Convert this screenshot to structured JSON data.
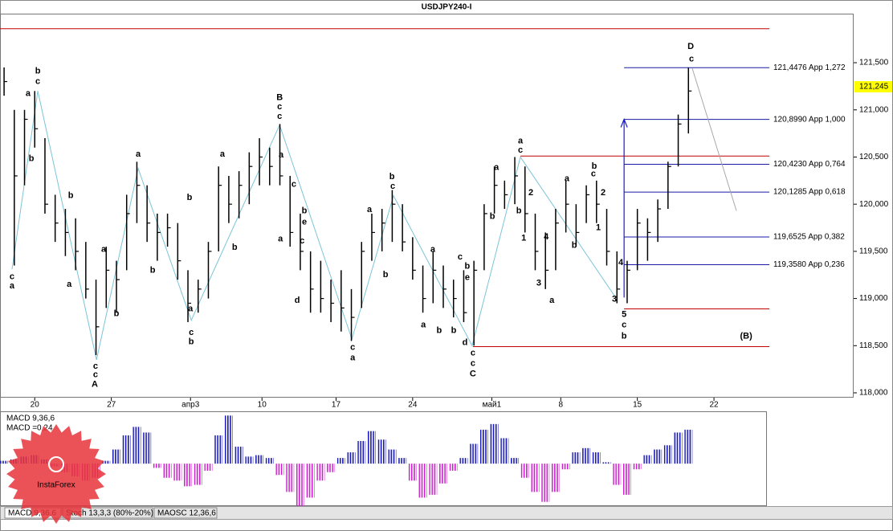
{
  "chart_data": [
    {
      "type": "ohlc",
      "title": "USDJPY240-I",
      "color": "#000000",
      "x": [
        0,
        4,
        8,
        12,
        16,
        20,
        24,
        28,
        32,
        36,
        40,
        44,
        48,
        52,
        56,
        60,
        64,
        68,
        72,
        76,
        80,
        84,
        88,
        92,
        96,
        100,
        104,
        108,
        112,
        116,
        120,
        124,
        128,
        132,
        136,
        140,
        144,
        148,
        152,
        156,
        160,
        164,
        168,
        172,
        176,
        180,
        184,
        188,
        192,
        196,
        200,
        204,
        208,
        212,
        216,
        220,
        224,
        228,
        232,
        236,
        240,
        244,
        248,
        252,
        256,
        260,
        264,
        268
      ],
      "high": [
        121.45,
        121.0,
        121.0,
        121.2,
        120.7,
        120.1,
        119.95,
        119.85,
        119.6,
        119.2,
        119.55,
        119.4,
        120.1,
        120.45,
        120.2,
        119.9,
        119.9,
        119.8,
        119.3,
        119.2,
        119.6,
        120.4,
        120.3,
        120.35,
        120.55,
        120.7,
        120.6,
        120.85,
        120.3,
        119.9,
        119.5,
        119.4,
        119.2,
        119.3,
        119.1,
        119.6,
        119.9,
        119.95,
        120.15,
        120.0,
        119.65,
        119.35,
        119.5,
        119.35,
        119.2,
        119.3,
        119.4,
        120.0,
        120.4,
        120.25,
        120.5,
        120.4,
        119.9,
        119.7,
        119.95,
        120.25,
        120.0,
        120.2,
        120.25,
        119.95,
        119.5,
        119.4,
        119.95,
        119.85,
        120.05,
        120.45,
        120.95,
        121.45
      ],
      "low": [
        121.15,
        119.35,
        120.2,
        120.6,
        119.9,
        119.6,
        119.45,
        119.3,
        119.0,
        118.4,
        118.9,
        118.85,
        119.3,
        119.8,
        119.6,
        119.4,
        119.55,
        119.2,
        118.75,
        118.85,
        119.0,
        119.5,
        119.8,
        119.85,
        120.0,
        120.2,
        120.2,
        120.2,
        119.55,
        119.3,
        118.85,
        118.85,
        118.75,
        118.65,
        118.55,
        118.9,
        119.4,
        119.5,
        119.6,
        119.5,
        119.2,
        118.85,
        118.95,
        118.9,
        118.8,
        118.75,
        118.5,
        119.3,
        119.9,
        119.95,
        120.0,
        119.7,
        119.3,
        119.1,
        119.3,
        119.7,
        119.55,
        119.8,
        119.8,
        119.35,
        118.95,
        118.95,
        119.3,
        119.4,
        119.6,
        119.95,
        120.4,
        120.75
      ],
      "close": [
        121.3,
        120.3,
        120.9,
        120.8,
        120.0,
        119.8,
        119.7,
        119.5,
        119.1,
        118.7,
        119.3,
        119.2,
        119.9,
        120.2,
        119.8,
        119.7,
        119.75,
        119.4,
        118.95,
        119.1,
        119.5,
        120.2,
        120.0,
        120.2,
        120.4,
        120.5,
        120.4,
        120.3,
        119.7,
        119.5,
        119.1,
        119.0,
        118.95,
        118.9,
        118.8,
        119.5,
        119.7,
        119.8,
        120.0,
        119.6,
        119.3,
        119.0,
        119.3,
        119.1,
        119.0,
        118.85,
        119.3,
        119.9,
        120.2,
        120.1,
        120.3,
        119.9,
        119.5,
        119.3,
        119.8,
        120.0,
        119.7,
        120.1,
        120.0,
        119.5,
        119.1,
        119.3,
        119.8,
        119.7,
        119.95,
        120.4,
        120.85,
        121.2
      ],
      "xlim": [
        -1.6,
        332.7
      ],
      "xticks": [
        {
          "value": 12,
          "label": "20"
        },
        {
          "value": 42,
          "label": "27"
        },
        {
          "value": 73,
          "label": "апр3"
        },
        {
          "value": 101,
          "label": "10"
        },
        {
          "value": 130,
          "label": "17"
        },
        {
          "value": 160,
          "label": "24"
        },
        {
          "value": 191,
          "label": "май1"
        },
        {
          "value": 218,
          "label": "8"
        },
        {
          "value": 248,
          "label": "15"
        },
        {
          "value": 278,
          "label": "22"
        }
      ],
      "ylim": [
        117.949,
        122.02
      ],
      "yticks": [
        {
          "value": 118,
          "label": "118,000"
        },
        {
          "value": 118.5,
          "label": "118,500"
        },
        {
          "value": 119,
          "label": "119,000"
        },
        {
          "value": 119.5,
          "label": "119,500"
        },
        {
          "value": 120,
          "label": "120,000"
        },
        {
          "value": 120.5,
          "label": "120,500"
        },
        {
          "value": 121,
          "label": "121,000"
        },
        {
          "value": 121.5,
          "label": "121,500"
        }
      ],
      "last_price": {
        "value": 121.245,
        "label": "121,245"
      },
      "fib_levels": {
        "color": "#1a1aa8",
        "x": [
          242.8,
          299.7
        ],
        "levels": [
          {
            "value": 121.4476,
            "label": "121,4476 App 1,272"
          },
          {
            "value": 120.899,
            "label": "120,8990 App 1,000"
          },
          {
            "value": 120.423,
            "label": "120,4230 App 0,764"
          },
          {
            "value": 120.1285,
            "label": "120,1285 App 0,618"
          },
          {
            "value": 119.6525,
            "label": "119,6525 App 0,382"
          },
          {
            "value": 119.358,
            "label": "119,3580 App 0,236"
          }
        ]
      },
      "lines": {
        "color": "#c00000",
        "items": [
          {
            "value": 121.86,
            "x": [
              -1.6,
              299.7
            ]
          },
          {
            "value": 120.51,
            "x": [
              202.2,
              299.7
            ]
          },
          {
            "value": 118.89,
            "x": [
              242.8,
              299.7
            ]
          },
          {
            "value": 118.49,
            "x": [
              183.6,
              299.7
            ]
          }
        ]
      },
      "wave_path": {
        "color": "#7cc4d8",
        "x": [
          3.1,
          13.2,
          36.2,
          52.5,
          73.3,
          107.9,
          136.2,
          152.5,
          183.3,
          202.2,
          239
        ],
        "y": [
          119.31,
          121.2,
          118.35,
          120.38,
          118.77,
          120.84,
          118.57,
          120.09,
          118.5,
          120.5,
          119.03
        ]
      },
      "projection": {
        "color": "#a8a8a8",
        "x": [
          269.5,
          286.8
        ],
        "y": [
          121.44,
          119.93
        ]
      },
      "arrow": {
        "color": "#1a1acc",
        "x": 242.8,
        "y": [
          119.01,
          120.9
        ]
      },
      "annotations": {
        "major": {
          "color": "#1a1acc",
          "items": [
            {
              "text": "A",
              "x": 35.5,
              "y": 118.09
            },
            {
              "text": "B",
              "x": 107.9,
              "y": 121.13
            },
            {
              "text": "C",
              "x": 183.6,
              "y": 118.2
            },
            {
              "text": "D",
              "x": 268.9,
              "y": 121.67
            }
          ]
        },
        "degree": {
          "color": "#8b1a1a",
          "items": [
            {
              "text": "(B)",
              "x": 290.6,
              "y": 118.6
            }
          ]
        },
        "minor_blue": {
          "color": "#1a1acc",
          "items": [
            {
              "text": "a",
              "x": 3.1,
              "y": 119.13
            },
            {
              "text": "b",
              "x": 13.2,
              "y": 121.41
            },
            {
              "text": "c",
              "x": 35.8,
              "y": 118.19
            },
            {
              "text": "c",
              "x": 107.9,
              "y": 121.03
            },
            {
              "text": "b",
              "x": 73.3,
              "y": 118.54
            },
            {
              "text": "a",
              "x": 52.5,
              "y": 120.53
            },
            {
              "text": "a",
              "x": 136.5,
              "y": 118.37
            },
            {
              "text": "b",
              "x": 151.9,
              "y": 120.29
            },
            {
              "text": "c",
              "x": 183.6,
              "y": 118.31
            },
            {
              "text": "a",
              "x": 202.2,
              "y": 120.67
            },
            {
              "text": "c",
              "x": 269.2,
              "y": 121.54
            },
            {
              "text": "b",
              "x": 242.8,
              "y": 118.6
            }
          ]
        },
        "minor_black": {
          "color": "#000000",
          "items": [
            {
              "text": "c",
              "x": 3.1,
              "y": 119.23
            },
            {
              "text": "c",
              "x": 13.2,
              "y": 121.3
            },
            {
              "text": "a",
              "x": 9.4,
              "y": 121.17
            },
            {
              "text": "b",
              "x": 10.7,
              "y": 120.48
            },
            {
              "text": "b",
              "x": 26.1,
              "y": 120.09
            },
            {
              "text": "a",
              "x": 25.5,
              "y": 119.15
            },
            {
              "text": "a",
              "x": 39,
              "y": 119.52
            },
            {
              "text": "b",
              "x": 44,
              "y": 118.84
            },
            {
              "text": "c",
              "x": 35.8,
              "y": 118.28
            },
            {
              "text": "c",
              "x": 73.3,
              "y": 118.64
            },
            {
              "text": "a",
              "x": 73,
              "y": 118.89
            },
            {
              "text": "b",
              "x": 72.6,
              "y": 120.07
            },
            {
              "text": "b",
              "x": 58.2,
              "y": 119.3
            },
            {
              "text": "a",
              "x": 85.5,
              "y": 120.53
            },
            {
              "text": "b",
              "x": 90.3,
              "y": 119.54
            },
            {
              "text": "c",
              "x": 107.9,
              "y": 120.93
            },
            {
              "text": "a",
              "x": 108.5,
              "y": 120.52
            },
            {
              "text": "c",
              "x": 113.5,
              "y": 120.21
            },
            {
              "text": "b",
              "x": 117.6,
              "y": 119.93
            },
            {
              "text": "e",
              "x": 117.6,
              "y": 119.81
            },
            {
              "text": "a",
              "x": 108.2,
              "y": 119.63
            },
            {
              "text": "c",
              "x": 116.7,
              "y": 119.61
            },
            {
              "text": "d",
              "x": 114.8,
              "y": 118.98
            },
            {
              "text": "c",
              "x": 136.5,
              "y": 118.48
            },
            {
              "text": "a",
              "x": 143.1,
              "y": 119.94
            },
            {
              "text": "b",
              "x": 149.4,
              "y": 119.25
            },
            {
              "text": "c",
              "x": 152.2,
              "y": 120.19
            },
            {
              "text": "a",
              "x": 167.9,
              "y": 119.52
            },
            {
              "text": "a",
              "x": 164.2,
              "y": 118.72
            },
            {
              "text": "b",
              "x": 170.4,
              "y": 118.66
            },
            {
              "text": "b",
              "x": 176.1,
              "y": 118.66
            },
            {
              "text": "c",
              "x": 178.6,
              "y": 119.44
            },
            {
              "text": "b",
              "x": 181.4,
              "y": 119.34
            },
            {
              "text": "e",
              "x": 181.4,
              "y": 119.22
            },
            {
              "text": "d",
              "x": 180.5,
              "y": 118.53
            },
            {
              "text": "c",
              "x": 183.6,
              "y": 118.42
            },
            {
              "text": "a",
              "x": 192.8,
              "y": 120.39
            },
            {
              "text": "b",
              "x": 191.2,
              "y": 119.87
            },
            {
              "text": "c",
              "x": 202.2,
              "y": 120.57
            },
            {
              "text": "b",
              "x": 201.6,
              "y": 119.93
            },
            {
              "text": "1",
              "x": 203.5,
              "y": 119.64
            },
            {
              "text": "2",
              "x": 206.3,
              "y": 120.12
            },
            {
              "text": "4",
              "x": 212.3,
              "y": 119.65
            },
            {
              "text": "3",
              "x": 209.4,
              "y": 119.16
            },
            {
              "text": "a",
              "x": 214.5,
              "y": 118.98
            },
            {
              "text": "a",
              "x": 220.4,
              "y": 120.27
            },
            {
              "text": "b",
              "x": 223.3,
              "y": 119.56
            },
            {
              "text": "b",
              "x": 231.1,
              "y": 120.4
            },
            {
              "text": "c",
              "x": 230.8,
              "y": 120.32
            },
            {
              "text": "2",
              "x": 234.6,
              "y": 120.12
            },
            {
              "text": "1",
              "x": 232.7,
              "y": 119.75
            },
            {
              "text": "3",
              "x": 239,
              "y": 118.99
            },
            {
              "text": "4",
              "x": 241.5,
              "y": 119.38
            },
            {
              "text": "5",
              "x": 242.8,
              "y": 118.83
            },
            {
              "text": "c",
              "x": 242.8,
              "y": 118.72
            }
          ]
        }
      }
    },
    {
      "type": "bar",
      "title": "MACD 9,36,6",
      "label": "MACD =0,24",
      "colors": {
        "positive": "#1818b4",
        "negative": "#cc22cc"
      },
      "x": [
        0,
        4,
        8,
        12,
        16,
        20,
        24,
        28,
        32,
        36,
        40,
        44,
        48,
        52,
        56,
        60,
        64,
        68,
        72,
        76,
        80,
        84,
        88,
        92,
        96,
        100,
        104,
        108,
        112,
        116,
        120,
        124,
        128,
        132,
        136,
        140,
        144,
        148,
        152,
        156,
        160,
        164,
        168,
        172,
        176,
        180,
        184,
        188,
        192,
        196,
        200,
        204,
        208,
        212,
        216,
        220,
        224,
        228,
        232,
        236,
        240,
        244,
        248,
        252,
        256,
        260,
        264,
        268
      ],
      "values": [
        0.02,
        0.03,
        0.05,
        0.06,
        0.03,
        -0.02,
        -0.06,
        -0.09,
        -0.12,
        -0.1,
        0.02,
        0.1,
        0.2,
        0.26,
        0.22,
        -0.03,
        -0.1,
        -0.12,
        -0.16,
        -0.15,
        -0.05,
        0.2,
        0.34,
        0.12,
        0.05,
        0.06,
        0.04,
        -0.08,
        -0.2,
        -0.3,
        -0.24,
        -0.12,
        -0.06,
        0.04,
        0.08,
        0.16,
        0.23,
        0.17,
        0.1,
        0.04,
        -0.12,
        -0.24,
        -0.22,
        -0.14,
        -0.05,
        0.04,
        0.14,
        0.24,
        0.28,
        0.18,
        0.04,
        -0.1,
        -0.2,
        -0.27,
        -0.2,
        -0.04,
        0.08,
        0.11,
        0.08,
        0.01,
        -0.15,
        -0.22,
        -0.04,
        0.06,
        0.1,
        0.13,
        0.22,
        0.24
      ],
      "xlim": [
        -1.6,
        332.7
      ],
      "ylim": [
        -0.3,
        0.37
      ]
    }
  ],
  "tabs": [
    "MACD 9,36,6",
    "Stoch 13,3,3 (80%-20%)",
    "MAOSC 12,36,6"
  ],
  "watermark": "InstaForex"
}
